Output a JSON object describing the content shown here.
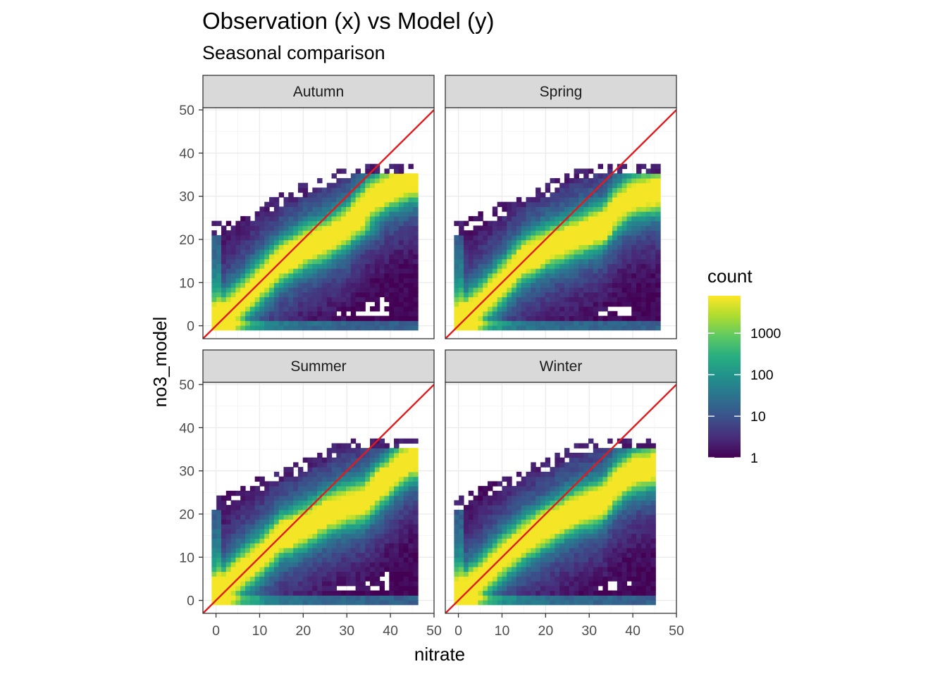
{
  "chart_data": {
    "type": "heatmap",
    "title": "Observation (x) vs Model (y)",
    "subtitle": "Seasonal comparison",
    "xlabel": "nitrate",
    "ylabel": "no3_model",
    "xlim": [
      -3,
      50
    ],
    "ylim": [
      -3,
      50.5
    ],
    "x_ticks": [
      0,
      10,
      20,
      30,
      40,
      50
    ],
    "y_ticks": [
      0,
      10,
      20,
      30,
      40,
      50
    ],
    "x_tick_labels": [
      "0",
      "10",
      "20",
      "30",
      "40",
      "50"
    ],
    "y_tick_labels": [
      "0",
      "10",
      "20",
      "30",
      "40",
      "50"
    ],
    "bin_width": 1.1,
    "reference_line": {
      "type": "identity",
      "slope": 1,
      "intercept": 0,
      "color": "#e31a1c"
    },
    "grid": true,
    "legend": {
      "title": "count",
      "placement": "right",
      "scale": "log10",
      "range": [
        1,
        8000
      ],
      "breaks": [
        1,
        10,
        100,
        1000
      ],
      "labels": [
        "1",
        "10",
        "100",
        "1000"
      ],
      "colormap": "viridis"
    },
    "panels": [
      {
        "name": "Autumn",
        "x_range": [
          -1,
          46
        ],
        "fill_top": 35,
        "sparse_top": 37.5,
        "sparse_low": 2,
        "low_wedge_start": 23,
        "ridge": [
          [
            -1,
            0
          ],
          [
            5,
            5
          ],
          [
            10,
            10
          ],
          [
            15,
            15
          ],
          [
            20,
            18
          ],
          [
            25,
            20
          ],
          [
            30,
            23
          ],
          [
            35,
            29
          ],
          [
            40,
            32
          ],
          [
            45,
            34
          ]
        ],
        "hot_spots": [
          [
            16,
            15.5
          ],
          [
            2,
            1.5
          ],
          [
            34,
            22.5
          ]
        ]
      },
      {
        "name": "Spring",
        "x_range": [
          -1,
          46
        ],
        "fill_top": 35,
        "sparse_top": 38,
        "sparse_low": 2,
        "low_wedge_start": 27,
        "ridge": [
          [
            -1,
            0
          ],
          [
            5,
            5
          ],
          [
            10,
            10
          ],
          [
            15,
            15.5
          ],
          [
            20,
            18
          ],
          [
            25,
            20
          ],
          [
            30,
            22
          ],
          [
            33,
            23
          ],
          [
            36,
            27
          ],
          [
            40,
            30
          ],
          [
            45,
            31
          ]
        ],
        "hot_spots": [
          [
            16,
            15.5
          ],
          [
            1,
            1
          ],
          [
            33,
            23
          ]
        ]
      },
      {
        "name": "Summer",
        "x_range": [
          -1,
          46
        ],
        "fill_top": 35,
        "sparse_top": 38,
        "sparse_low": 2,
        "low_wedge_start": 24,
        "ridge": [
          [
            -1,
            0
          ],
          [
            5,
            6
          ],
          [
            10,
            10
          ],
          [
            15,
            15
          ],
          [
            20,
            17
          ],
          [
            25,
            20
          ],
          [
            30,
            22
          ],
          [
            34,
            23
          ],
          [
            38,
            27
          ],
          [
            42,
            31
          ],
          [
            45,
            33
          ]
        ],
        "hot_spots": [
          [
            16,
            15.5
          ],
          [
            0,
            2
          ],
          [
            38,
            28
          ]
        ]
      },
      {
        "name": "Winter",
        "x_range": [
          -1,
          45
        ],
        "fill_top": 35,
        "sparse_top": 38,
        "sparse_low": 2,
        "low_wedge_start": 27,
        "ridge": [
          [
            -1,
            0
          ],
          [
            5,
            5
          ],
          [
            10,
            10
          ],
          [
            15,
            14
          ],
          [
            20,
            17
          ],
          [
            25,
            20
          ],
          [
            30,
            22
          ],
          [
            33,
            23
          ],
          [
            36,
            27
          ],
          [
            40,
            30
          ],
          [
            45,
            31
          ]
        ],
        "hot_spots": [
          [
            32,
            22.5
          ],
          [
            0,
            0.5
          ],
          [
            20,
            18
          ]
        ]
      }
    ]
  }
}
